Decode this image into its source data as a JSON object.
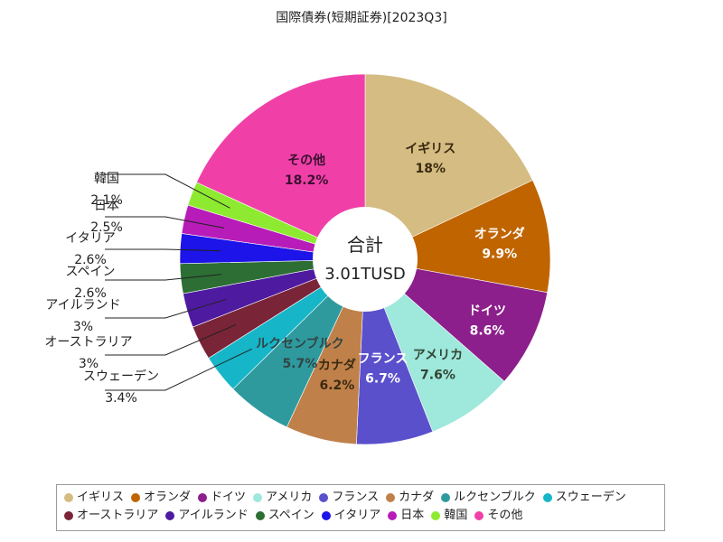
{
  "chart_data": {
    "type": "pie",
    "title": "国際債券(短期証券)[2023Q3]",
    "center_label": "合計",
    "total_label": "3.01TUSD",
    "slices": [
      {
        "name": "イギリス",
        "value": 18,
        "label": "18%",
        "color": "#d4bc82"
      },
      {
        "name": "オランダ",
        "value": 9.9,
        "label": "9.9%",
        "color": "#c06400"
      },
      {
        "name": "ドイツ",
        "value": 8.6,
        "label": "8.6%",
        "color": "#8c1f8c"
      },
      {
        "name": "アメリカ",
        "value": 7.6,
        "label": "7.6%",
        "color": "#9ee8dc"
      },
      {
        "name": "フランス",
        "value": 6.7,
        "label": "6.7%",
        "color": "#5a50cc"
      },
      {
        "name": "カナダ",
        "value": 6.2,
        "label": "6.2%",
        "color": "#c0804a"
      },
      {
        "name": "ルクセンブルク",
        "value": 5.7,
        "label": "5.7%",
        "color": "#2e9a9e"
      },
      {
        "name": "スウェーデン",
        "value": 3.4,
        "label": "3.4%",
        "color": "#16b6c8"
      },
      {
        "name": "オーストラリア",
        "value": 3,
        "label": "3%",
        "color": "#7a2438"
      },
      {
        "name": "アイルランド",
        "value": 3,
        "label": "3%",
        "color": "#4e1aa0"
      },
      {
        "name": "スペイン",
        "value": 2.6,
        "label": "2.6%",
        "color": "#2c6e34"
      },
      {
        "name": "イタリア",
        "value": 2.6,
        "label": "2.6%",
        "color": "#1c14e8"
      },
      {
        "name": "日本",
        "value": 2.5,
        "label": "2.5%",
        "color": "#b81cb8"
      },
      {
        "name": "韓国",
        "value": 2.1,
        "label": "2.1%",
        "color": "#8eea30"
      },
      {
        "name": "その他",
        "value": 18.2,
        "label": "18.2%",
        "color": "#f040a8"
      }
    ],
    "legend_position": "bottom"
  }
}
